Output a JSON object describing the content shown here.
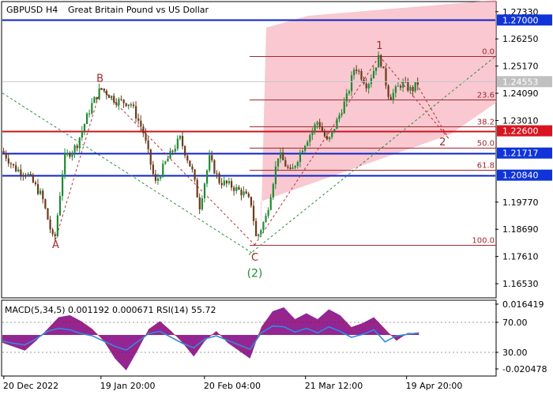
{
  "chart_data": {
    "type": "candlestick",
    "symbol": "GBPUSD",
    "timeframe": "H4",
    "description": "Great Britain Pound vs US Dollar",
    "price_axis_ticks": [
      "1.27330",
      "1.26250",
      "1.25170",
      "1.24090",
      "1.23010",
      "1.19770",
      "1.18690",
      "1.17610",
      "1.16530"
    ],
    "current_price": "1.24553",
    "ylim": [
      1.16,
      1.277
    ],
    "horizontal_levels": [
      {
        "label": "1.27000",
        "price": 1.27,
        "color": "#0b23c8",
        "badge_bg": "#1034d8"
      },
      {
        "label": "1.22600",
        "price": 1.226,
        "color": "#c8141e",
        "badge_bg": "#d8141e"
      },
      {
        "label": "1.21717",
        "price": 1.21717,
        "color": "#0b23c8",
        "badge_bg": "#1034d8"
      },
      {
        "label": "1.20840",
        "price": 1.2084,
        "color": "#0b23c8",
        "badge_bg": "#1034d8"
      }
    ],
    "fibonacci_levels": [
      {
        "label": "0.0",
        "price": 1.2557
      },
      {
        "label": "23.6",
        "price": 1.2384
      },
      {
        "label": "38.2",
        "price": 1.2278
      },
      {
        "label": "50.0",
        "price": 1.2192
      },
      {
        "label": "61.8",
        "price": 1.2106
      },
      {
        "label": "100.0",
        "price": 1.1807
      }
    ],
    "wave_labels": [
      {
        "text": "B",
        "color": "#a0282d",
        "t": 0.198,
        "price": 1.2455
      },
      {
        "text": "A",
        "color": "#a0282d",
        "t": 0.108,
        "price": 1.1795
      },
      {
        "text": "C",
        "color": "#a0282d",
        "t": 0.512,
        "price": 1.1745
      },
      {
        "text": "(2)",
        "color": "#1e8c32",
        "t": 0.512,
        "price": 1.168
      },
      {
        "text": "1",
        "color": "#a0282d",
        "t": 0.765,
        "price": 1.2585
      },
      {
        "text": "2",
        "color": "#a0282d",
        "t": 0.893,
        "price": 1.2202
      }
    ],
    "time_labels": [
      "20 Dec 2022",
      "19 Jan 20:00",
      "20 Feb 04:00",
      "21 Mar 12:00",
      "19 Apr 20:00"
    ],
    "close_path": [
      [
        0.0,
        1.218
      ],
      [
        0.025,
        1.211
      ],
      [
        0.05,
        1.209
      ],
      [
        0.08,
        1.2
      ],
      [
        0.105,
        1.181
      ],
      [
        0.125,
        1.215
      ],
      [
        0.15,
        1.22
      ],
      [
        0.18,
        1.236
      ],
      [
        0.2,
        1.243
      ],
      [
        0.23,
        1.238
      ],
      [
        0.26,
        1.237
      ],
      [
        0.285,
        1.226
      ],
      [
        0.31,
        1.205
      ],
      [
        0.33,
        1.213
      ],
      [
        0.36,
        1.223
      ],
      [
        0.385,
        1.21
      ],
      [
        0.4,
        1.196
      ],
      [
        0.42,
        1.215
      ],
      [
        0.44,
        1.206
      ],
      [
        0.465,
        1.204
      ],
      [
        0.49,
        1.201
      ],
      [
        0.505,
        1.197
      ],
      [
        0.515,
        1.183
      ],
      [
        0.535,
        1.192
      ],
      [
        0.56,
        1.217
      ],
      [
        0.585,
        1.209
      ],
      [
        0.61,
        1.22
      ],
      [
        0.64,
        1.23
      ],
      [
        0.66,
        1.221
      ],
      [
        0.685,
        1.233
      ],
      [
        0.7,
        1.24
      ],
      [
        0.715,
        1.252
      ],
      [
        0.74,
        1.244
      ],
      [
        0.765,
        1.2557
      ],
      [
        0.785,
        1.239
      ],
      [
        0.81,
        1.245
      ],
      [
        0.83,
        1.242
      ],
      [
        0.845,
        1.2455
      ]
    ],
    "indicators": {
      "label": "MACD(5,34,5) 0.001192 0.000671 RSI(14) 55.72",
      "scale_ticks": [
        "0.016419",
        "70.00",
        "30.00",
        "-0.020478"
      ],
      "macd_range": [
        -0.020478,
        0.016419
      ],
      "rsi_levels": [
        30,
        70
      ],
      "macd_hist": [
        -0.004,
        -0.006,
        -0.008,
        -0.003,
        0.003,
        0.009,
        0.01,
        0.007,
        0.003,
        -0.003,
        -0.012,
        -0.018,
        -0.008,
        0.003,
        0.007,
        0.002,
        -0.004,
        -0.011,
        -0.003,
        0.002,
        -0.004,
        -0.008,
        -0.012,
        0.004,
        0.012,
        0.014,
        0.008,
        0.011,
        0.008,
        0.013,
        0.01,
        0.004,
        0.006,
        0.009,
        0.003,
        -0.003,
        0.001,
        0.001
      ],
      "rsi": [
        45,
        42,
        40,
        48,
        58,
        62,
        60,
        55,
        52,
        45,
        38,
        33,
        44,
        55,
        58,
        50,
        42,
        36,
        48,
        52,
        46,
        40,
        34,
        56,
        65,
        64,
        57,
        62,
        56,
        64,
        58,
        50,
        54,
        60,
        44,
        52,
        54,
        56
      ]
    }
  }
}
